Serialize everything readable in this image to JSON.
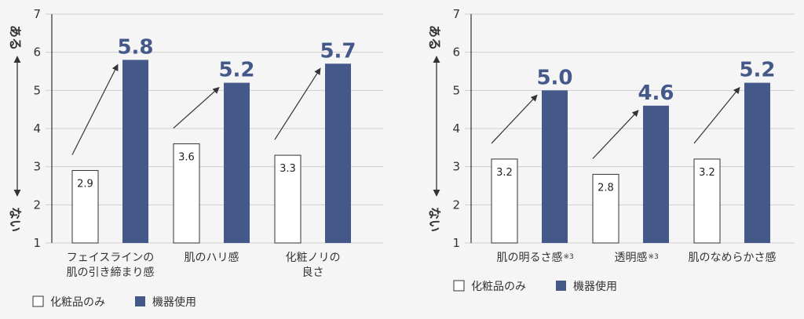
{
  "colors": {
    "before": "#ffffff",
    "after": "#44598a",
    "grid": "#cfcfcf",
    "text": "#333333"
  },
  "legend": {
    "before_label": "化粧品のみ",
    "after_label": "機器使用"
  },
  "axis_side": {
    "top": "ある",
    "bottom": "ない"
  },
  "chart_data": [
    {
      "type": "bar",
      "categories": [
        [
          "フェイスラインの",
          "肌の引き締まり感"
        ],
        [
          "肌のハリ感"
        ],
        [
          "化粧ノリの",
          "良さ"
        ]
      ],
      "category_notes": [
        "",
        "",
        ""
      ],
      "series": [
        {
          "name": "化粧品のみ",
          "values": [
            2.9,
            3.6,
            3.3
          ]
        },
        {
          "name": "機器使用",
          "values": [
            5.8,
            5.2,
            5.7
          ]
        }
      ],
      "ylim": [
        1,
        7
      ],
      "yticks": [
        "1",
        "2",
        "3",
        "4",
        "5",
        "6",
        "7"
      ],
      "grid": true
    },
    {
      "type": "bar",
      "categories": [
        [
          "肌の明るさ感"
        ],
        [
          "透明感"
        ],
        [
          "肌のなめらかさ感"
        ]
      ],
      "category_notes": [
        "※3",
        "※3",
        ""
      ],
      "series": [
        {
          "name": "化粧品のみ",
          "values": [
            3.2,
            2.8,
            3.2
          ]
        },
        {
          "name": "機器使用",
          "values": [
            5.0,
            4.6,
            5.2
          ]
        }
      ],
      "ylim": [
        1,
        7
      ],
      "yticks": [
        "1",
        "2",
        "3",
        "4",
        "5",
        "6",
        "7"
      ],
      "grid": true
    }
  ]
}
